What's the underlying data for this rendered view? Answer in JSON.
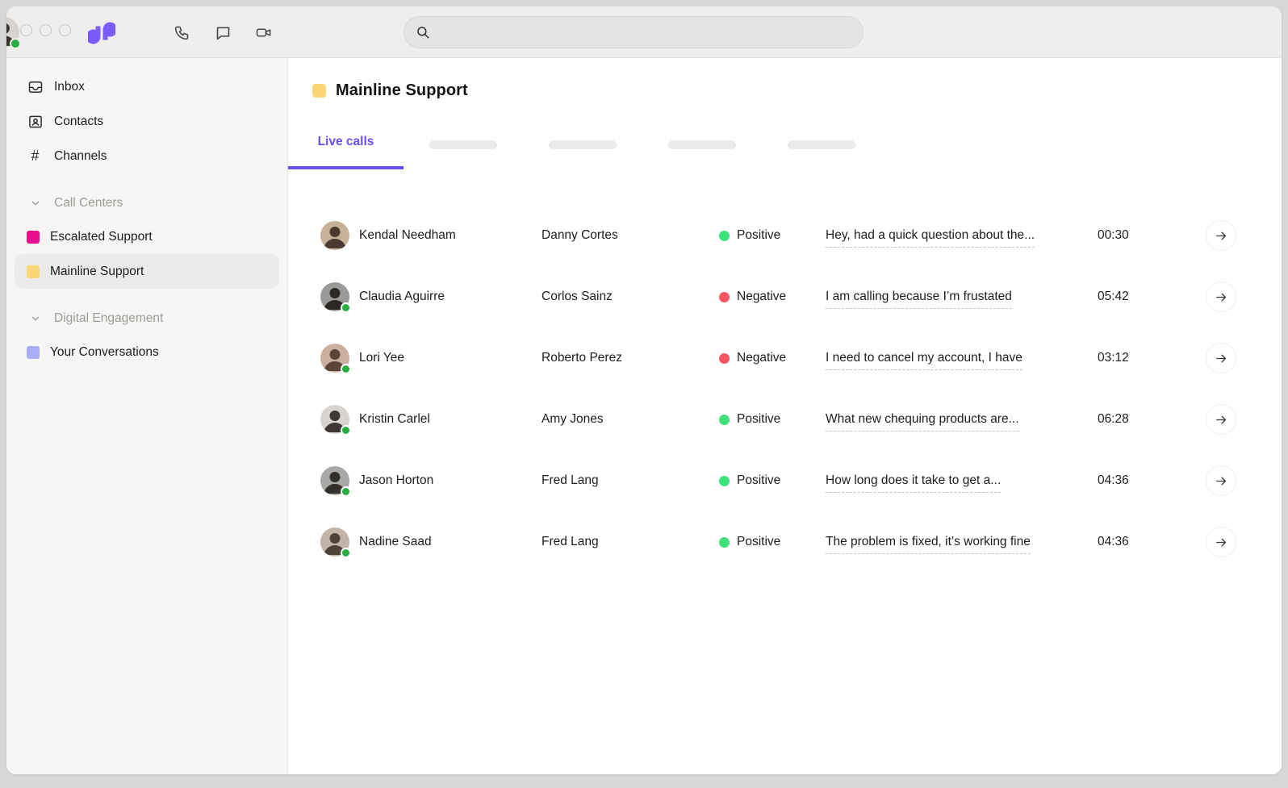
{
  "colors": {
    "accent": "#6C4EF7",
    "positive": "#3EE27B",
    "negative": "#FB5561",
    "presence": "#27AE40",
    "escalated_swatch": "#EC0D8E",
    "mainline_swatch": "#FBD677",
    "conversations_swatch": "#A9AEFA",
    "logo_purple": "#7B5CFA"
  },
  "topbar": {
    "window_controls": [
      "close",
      "minimize",
      "maximize"
    ],
    "icons": [
      "phone-icon",
      "chat-icon",
      "video-icon"
    ],
    "search": {
      "placeholder": "",
      "value": ""
    },
    "user_avatar": {
      "status": "online",
      "tone": {
        "bg": "#d9d3cf",
        "fg": "#3a312c"
      }
    }
  },
  "sidebar": {
    "items": [
      {
        "label": "Inbox",
        "icon": "inbox-icon"
      },
      {
        "label": "Contacts",
        "icon": "contacts-icon"
      },
      {
        "label": "Channels",
        "icon": "hash-icon"
      }
    ],
    "sections": [
      {
        "label": "Call Centers",
        "items": [
          {
            "label": "Escalated Support",
            "color": "#EC0D8E",
            "selected": false
          },
          {
            "label": "Mainline Support",
            "color": "#FBD677",
            "selected": true
          }
        ]
      },
      {
        "label": "Digital Engagement",
        "items": [
          {
            "label": "Your Conversations",
            "color": "#A9AEFA",
            "selected": false
          }
        ]
      }
    ]
  },
  "main": {
    "title": "Mainline Support",
    "title_swatch_color": "#FBD677",
    "tabs": {
      "active": "Live calls",
      "skeleton_count": 4
    },
    "calls": [
      {
        "agent": "Kendal Needham",
        "caller": "Danny Cortes",
        "sentiment": "Positive",
        "snippet": "Hey, had a quick question about the...",
        "duration": "00:30",
        "presence": false,
        "tone": {
          "bg": "#c7b299",
          "fg": "#4a3a30"
        }
      },
      {
        "agent": "Claudia Aguirre",
        "caller": "Corlos Sainz",
        "sentiment": "Negative",
        "snippet": "I am calling because I’m frustated",
        "duration": "05:42",
        "presence": true,
        "tone": {
          "bg": "#9a9a98",
          "fg": "#2e2824"
        }
      },
      {
        "agent": "Lori Yee",
        "caller": "Roberto Perez",
        "sentiment": "Negative",
        "snippet": "I need to cancel my account, I have",
        "duration": "03:12",
        "presence": true,
        "tone": {
          "bg": "#cbb0a0",
          "fg": "#5b4438"
        }
      },
      {
        "agent": "Kristin Carlel",
        "caller": "Amy Jones",
        "sentiment": "Positive",
        "snippet": "What new chequing products are...",
        "duration": "06:28",
        "presence": true,
        "tone": {
          "bg": "#d8d3cf",
          "fg": "#3f3733"
        }
      },
      {
        "agent": "Jason Horton",
        "caller": "Fred Lang",
        "sentiment": "Positive",
        "snippet": "How long does it take to get a...",
        "duration": "04:36",
        "presence": true,
        "tone": {
          "bg": "#a8a8a6",
          "fg": "#33302c"
        }
      },
      {
        "agent": "Nadine Saad",
        "caller": "Fred Lang",
        "sentiment": "Positive",
        "snippet": "The problem is fixed, it’s working fine",
        "duration": "04:36",
        "presence": true,
        "tone": {
          "bg": "#c2b4a6",
          "fg": "#4e4239"
        }
      }
    ]
  }
}
